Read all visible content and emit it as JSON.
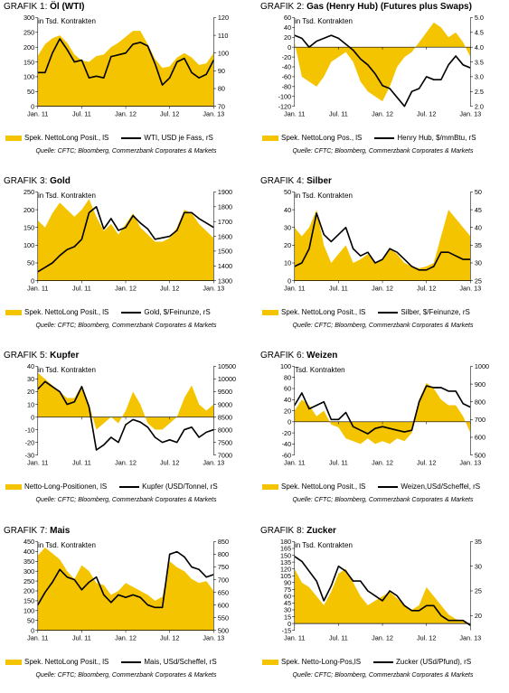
{
  "colors": {
    "area": "#f5c400",
    "line": "#000000"
  },
  "source": "Quelle: CFTC; Bloomberg, Commerzbank Corporates & Markets",
  "chart_data": [
    {
      "type": "area",
      "graf": "GRAFIK 1:",
      "name": "Öl (WTI)",
      "unit": "in Tsd. Kontrakten",
      "x": [
        "2011-01",
        "2011-02",
        "2011-03",
        "2011-04",
        "2011-05",
        "2011-06",
        "2011-07",
        "2011-08",
        "2011-09",
        "2011-10",
        "2011-11",
        "2011-12",
        "2012-01",
        "2012-02",
        "2012-03",
        "2012-04",
        "2012-05",
        "2012-06",
        "2012-07",
        "2012-08",
        "2012-09",
        "2012-10",
        "2012-11",
        "2012-12",
        "2013-01"
      ],
      "xticks": [
        "Jan. 11",
        "Jul. 11",
        "Jan. 12",
        "Jul. 12",
        "Jan. 13"
      ],
      "left_ticks": [
        "0",
        "50",
        "100",
        "150",
        "200",
        "250",
        "300"
      ],
      "left_lim": [
        0,
        300
      ],
      "right_ticks": [
        "70",
        "80",
        "90",
        "100",
        "110",
        "120"
      ],
      "right_lim": [
        70,
        120
      ],
      "series": [
        {
          "name": "Spek. NettoLong Posit., lS",
          "axis": "left",
          "values": [
            170,
            210,
            230,
            240,
            215,
            175,
            155,
            150,
            170,
            175,
            200,
            215,
            235,
            255,
            255,
            210,
            160,
            130,
            135,
            165,
            180,
            165,
            140,
            145,
            180
          ]
        },
        {
          "name": "WTI, USD je Fass, rS",
          "axis": "right",
          "values": [
            89,
            89,
            100,
            108,
            102,
            95,
            96,
            86,
            87,
            86,
            98,
            99,
            100,
            105,
            106,
            104,
            94,
            82,
            86,
            95,
            97,
            89,
            86,
            88,
            96
          ]
        }
      ]
    },
    {
      "type": "area",
      "graf": "GRAFIK 2:",
      "name": "Gas (Henry Hub) (Futures plus Swaps)",
      "unit": "in Tsd. Kontrakten",
      "x": [
        "2011-01",
        "2011-02",
        "2011-03",
        "2011-04",
        "2011-05",
        "2011-06",
        "2011-07",
        "2011-08",
        "2011-09",
        "2011-10",
        "2011-11",
        "2011-12",
        "2012-01",
        "2012-02",
        "2012-03",
        "2012-04",
        "2012-05",
        "2012-06",
        "2012-07",
        "2012-08",
        "2012-09",
        "2012-10",
        "2012-11",
        "2012-12",
        "2013-01"
      ],
      "xticks": [
        "Jan. 11",
        "Jul. 11",
        "Jan. 12",
        "Jul. 12",
        "Jan. 13"
      ],
      "left_ticks": [
        "-120",
        "-100",
        "-80",
        "-60",
        "-40",
        "-20",
        "0",
        "20",
        "40",
        "60"
      ],
      "left_lim": [
        -120,
        60
      ],
      "right_ticks": [
        "2.0",
        "2.5",
        "3.0",
        "3.5",
        "4.0",
        "4.5",
        "5.0"
      ],
      "right_lim": [
        2.0,
        5.0
      ],
      "series": [
        {
          "name": "Spek. NettoLong Pos., lS",
          "axis": "left",
          "values": [
            10,
            -60,
            -70,
            -80,
            -60,
            -30,
            -20,
            -10,
            -30,
            -70,
            -90,
            -100,
            -110,
            -80,
            -40,
            -20,
            -10,
            10,
            30,
            50,
            40,
            20,
            30,
            10,
            -20
          ]
        },
        {
          "name": "Henry Hub, $/mmBtu, rS",
          "axis": "right",
          "values": [
            4.4,
            4.3,
            4.0,
            4.2,
            4.3,
            4.4,
            4.3,
            4.1,
            3.9,
            3.6,
            3.4,
            3.1,
            2.7,
            2.6,
            2.3,
            2.0,
            2.5,
            2.6,
            3.0,
            2.9,
            2.9,
            3.4,
            3.7,
            3.4,
            3.3
          ]
        }
      ]
    },
    {
      "type": "area",
      "graf": "GRAFIK 3:",
      "name": "Gold",
      "unit": "in Tsd. Kontrakten",
      "x": [
        "2011-01",
        "2011-02",
        "2011-03",
        "2011-04",
        "2011-05",
        "2011-06",
        "2011-07",
        "2011-08",
        "2011-09",
        "2011-10",
        "2011-11",
        "2011-12",
        "2012-01",
        "2012-02",
        "2012-03",
        "2012-04",
        "2012-05",
        "2012-06",
        "2012-07",
        "2012-08",
        "2012-09",
        "2012-10",
        "2012-11",
        "2012-12",
        "2013-01"
      ],
      "xticks": [
        "Jan. 11",
        "Jul. 11",
        "Jan. 12",
        "Jul. 12",
        "Jan. 13"
      ],
      "left_ticks": [
        "0",
        "50",
        "100",
        "150",
        "200",
        "250"
      ],
      "left_lim": [
        0,
        250
      ],
      "right_ticks": [
        "1300",
        "1400",
        "1500",
        "1600",
        "1700",
        "1800",
        "1900"
      ],
      "right_lim": [
        1300,
        1900
      ],
      "series": [
        {
          "name": "Spek. NettoLong Posit., lS",
          "axis": "left",
          "values": [
            170,
            150,
            190,
            220,
            200,
            180,
            200,
            230,
            180,
            140,
            160,
            130,
            160,
            190,
            150,
            130,
            110,
            110,
            120,
            150,
            200,
            190,
            160,
            140,
            120
          ]
        },
        {
          "name": "Gold, $/Feinunze, rS",
          "axis": "right",
          "values": [
            1360,
            1390,
            1420,
            1470,
            1510,
            1530,
            1580,
            1760,
            1800,
            1650,
            1720,
            1640,
            1660,
            1740,
            1690,
            1650,
            1580,
            1590,
            1600,
            1640,
            1760,
            1760,
            1720,
            1690,
            1660
          ]
        }
      ]
    },
    {
      "type": "area",
      "graf": "GRAFIK 4:",
      "name": "Silber",
      "unit": "in Tsd. Kontrakten",
      "x": [
        "2011-01",
        "2011-02",
        "2011-03",
        "2011-04",
        "2011-05",
        "2011-06",
        "2011-07",
        "2011-08",
        "2011-09",
        "2011-10",
        "2011-11",
        "2011-12",
        "2012-01",
        "2012-02",
        "2012-03",
        "2012-04",
        "2012-05",
        "2012-06",
        "2012-07",
        "2012-08",
        "2012-09",
        "2012-10",
        "2012-11",
        "2012-12",
        "2013-01"
      ],
      "xticks": [
        "Jan. 11",
        "Jul. 11",
        "Jan. 12",
        "Jul. 12",
        "Jan. 13"
      ],
      "left_ticks": [
        "0",
        "10",
        "20",
        "30",
        "40",
        "50"
      ],
      "left_lim": [
        0,
        50
      ],
      "right_ticks": [
        "25",
        "30",
        "35",
        "40",
        "45",
        "50"
      ],
      "right_lim": [
        25,
        50
      ],
      "series": [
        {
          "name": "Spek. NettoLong Posit., lS",
          "axis": "left",
          "values": [
            30,
            25,
            30,
            40,
            20,
            10,
            15,
            20,
            10,
            12,
            15,
            10,
            12,
            18,
            15,
            10,
            8,
            7,
            8,
            10,
            25,
            40,
            35,
            30,
            25
          ]
        },
        {
          "name": "Silber, $/Feinunze, rS",
          "axis": "right",
          "values": [
            29,
            30,
            34,
            44,
            38,
            36,
            38,
            40,
            34,
            32,
            33,
            30,
            31,
            34,
            33,
            31,
            29,
            28,
            28,
            29,
            33,
            33,
            32,
            31,
            31
          ]
        }
      ]
    },
    {
      "type": "area",
      "graf": "GRAFIK 5:",
      "name": "Kupfer",
      "unit": "in Tsd. Kontrakten",
      "x": [
        "2011-01",
        "2011-02",
        "2011-03",
        "2011-04",
        "2011-05",
        "2011-06",
        "2011-07",
        "2011-08",
        "2011-09",
        "2011-10",
        "2011-11",
        "2011-12",
        "2012-01",
        "2012-02",
        "2012-03",
        "2012-04",
        "2012-05",
        "2012-06",
        "2012-07",
        "2012-08",
        "2012-09",
        "2012-10",
        "2012-11",
        "2012-12",
        "2013-01"
      ],
      "xticks": [
        "Jan. 11",
        "Jul. 11",
        "Jan. 12",
        "Jul. 12",
        "Jan. 13"
      ],
      "left_ticks": [
        "-30",
        "-20",
        "-10",
        "0",
        "10",
        "20",
        "30",
        "40"
      ],
      "left_lim": [
        -30,
        40
      ],
      "right_ticks": [
        "7000",
        "7500",
        "8000",
        "8500",
        "9000",
        "9500",
        "10000",
        "10500"
      ],
      "right_lim": [
        7000,
        10500
      ],
      "series": [
        {
          "name": "Netto-Long-Positionen, lS",
          "axis": "left",
          "values": [
            35,
            30,
            25,
            20,
            15,
            15,
            25,
            10,
            -10,
            -5,
            0,
            -5,
            5,
            20,
            10,
            -5,
            -10,
            -10,
            -5,
            0,
            15,
            25,
            10,
            5,
            10
          ]
        },
        {
          "name": "Kupfer (USD/Tonnel, rS",
          "axis": "right",
          "values": [
            9600,
            9900,
            9700,
            9500,
            9000,
            9100,
            9700,
            8900,
            7200,
            7400,
            7700,
            7500,
            8200,
            8400,
            8300,
            8100,
            7700,
            7500,
            7600,
            7500,
            8000,
            8100,
            7700,
            7900,
            8000
          ]
        }
      ]
    },
    {
      "type": "area",
      "graf": "GRAFIK 6:",
      "name": "Weizen",
      "unit": "Tsd. Kontrakten",
      "x": [
        "2011-01",
        "2011-02",
        "2011-03",
        "2011-04",
        "2011-05",
        "2011-06",
        "2011-07",
        "2011-08",
        "2011-09",
        "2011-10",
        "2011-11",
        "2011-12",
        "2012-01",
        "2012-02",
        "2012-03",
        "2012-04",
        "2012-05",
        "2012-06",
        "2012-07",
        "2012-08",
        "2012-09",
        "2012-10",
        "2012-11",
        "2012-12",
        "2013-01"
      ],
      "xticks": [
        "Jan. 11",
        "Jul. 11",
        "Jan. 12",
        "Jul. 12",
        "Jan. 13"
      ],
      "left_ticks": [
        "-60",
        "-40",
        "-20",
        "0",
        "20",
        "40",
        "60",
        "80",
        "100"
      ],
      "left_lim": [
        -60,
        100
      ],
      "right_ticks": [
        "500",
        "600",
        "700",
        "800",
        "900",
        "1000"
      ],
      "right_lim": [
        500,
        1000
      ],
      "series": [
        {
          "name": "Spek. NettoLong Posit., lS",
          "axis": "left",
          "values": [
            20,
            40,
            30,
            10,
            20,
            -5,
            -10,
            -30,
            -35,
            -40,
            -30,
            -40,
            -35,
            -40,
            -30,
            -35,
            -20,
            40,
            70,
            60,
            40,
            30,
            30,
            10,
            -20
          ]
        },
        {
          "name": "Weizen,USd/Scheffel, rS",
          "axis": "right",
          "values": [
            780,
            850,
            760,
            780,
            800,
            700,
            700,
            740,
            660,
            640,
            620,
            650,
            660,
            650,
            640,
            630,
            640,
            800,
            890,
            880,
            880,
            860,
            860,
            790,
            770
          ]
        }
      ]
    },
    {
      "type": "area",
      "graf": "GRAFIK 7:",
      "name": "Mais",
      "unit": "in Tsd. Kontrakten",
      "x": [
        "2011-01",
        "2011-02",
        "2011-03",
        "2011-04",
        "2011-05",
        "2011-06",
        "2011-07",
        "2011-08",
        "2011-09",
        "2011-10",
        "2011-11",
        "2011-12",
        "2012-01",
        "2012-02",
        "2012-03",
        "2012-04",
        "2012-05",
        "2012-06",
        "2012-07",
        "2012-08",
        "2012-09",
        "2012-10",
        "2012-11",
        "2012-12",
        "2013-01"
      ],
      "xticks": [
        "Jan. 11",
        "Jul. 11",
        "Jan. 12",
        "Jul. 12",
        "Jan. 13"
      ],
      "left_ticks": [
        "0",
        "50",
        "100",
        "150",
        "200",
        "250",
        "300",
        "350",
        "400",
        "450"
      ],
      "left_lim": [
        0,
        450
      ],
      "right_ticks": [
        "500",
        "550",
        "600",
        "650",
        "700",
        "750",
        "800",
        "850"
      ],
      "right_lim": [
        500,
        850
      ],
      "series": [
        {
          "name": "Spek. NettoLong Posit., lS",
          "axis": "left",
          "values": [
            380,
            420,
            390,
            360,
            300,
            260,
            330,
            300,
            240,
            230,
            180,
            200,
            240,
            220,
            200,
            180,
            150,
            170,
            350,
            320,
            300,
            260,
            240,
            250,
            200
          ]
        },
        {
          "name": "Mais, USd/Scheffel, rS",
          "axis": "right",
          "values": [
            600,
            650,
            690,
            740,
            710,
            700,
            660,
            690,
            710,
            640,
            610,
            640,
            630,
            640,
            630,
            600,
            590,
            590,
            800,
            810,
            790,
            750,
            740,
            710,
            720
          ]
        }
      ]
    },
    {
      "type": "area",
      "graf": "GRAFIK 8:",
      "name": "Zucker",
      "unit": "in Tsd. Kontrakten",
      "x": [
        "2011-01",
        "2011-02",
        "2011-03",
        "2011-04",
        "2011-05",
        "2011-06",
        "2011-07",
        "2011-08",
        "2011-09",
        "2011-10",
        "2011-11",
        "2011-12",
        "2012-01",
        "2012-02",
        "2012-03",
        "2012-04",
        "2012-05",
        "2012-06",
        "2012-07",
        "2012-08",
        "2012-09",
        "2012-10",
        "2012-11",
        "2012-12",
        "2013-01"
      ],
      "xticks": [
        "Jan. 11",
        "Jul. 11",
        "Jan. 12",
        "Jul. 12",
        "Jan. 13"
      ],
      "left_ticks": [
        "-15",
        "0",
        "15",
        "30",
        "45",
        "60",
        "75",
        "90",
        "105",
        "120",
        "135",
        "150",
        "165",
        "180"
      ],
      "left_lim": [
        -15,
        180
      ],
      "right_ticks": [
        "20",
        "25",
        "30",
        "35"
      ],
      "right_lim": [
        17,
        35
      ],
      "series": [
        {
          "name": "Spek. Netto-Long-Pos,lS",
          "axis": "left",
          "values": [
            120,
            90,
            80,
            60,
            40,
            70,
            110,
            120,
            90,
            60,
            40,
            50,
            60,
            70,
            55,
            40,
            30,
            40,
            80,
            60,
            40,
            20,
            10,
            5,
            0
          ]
        },
        {
          "name": "Zucker (USd/Pfund), rS",
          "axis": "right",
          "values": [
            32,
            31,
            29,
            27,
            23,
            26,
            30,
            29,
            27,
            27,
            25,
            24,
            23,
            25,
            24,
            22,
            21,
            21,
            22,
            22,
            20,
            19,
            19,
            19,
            18
          ]
        }
      ]
    }
  ]
}
